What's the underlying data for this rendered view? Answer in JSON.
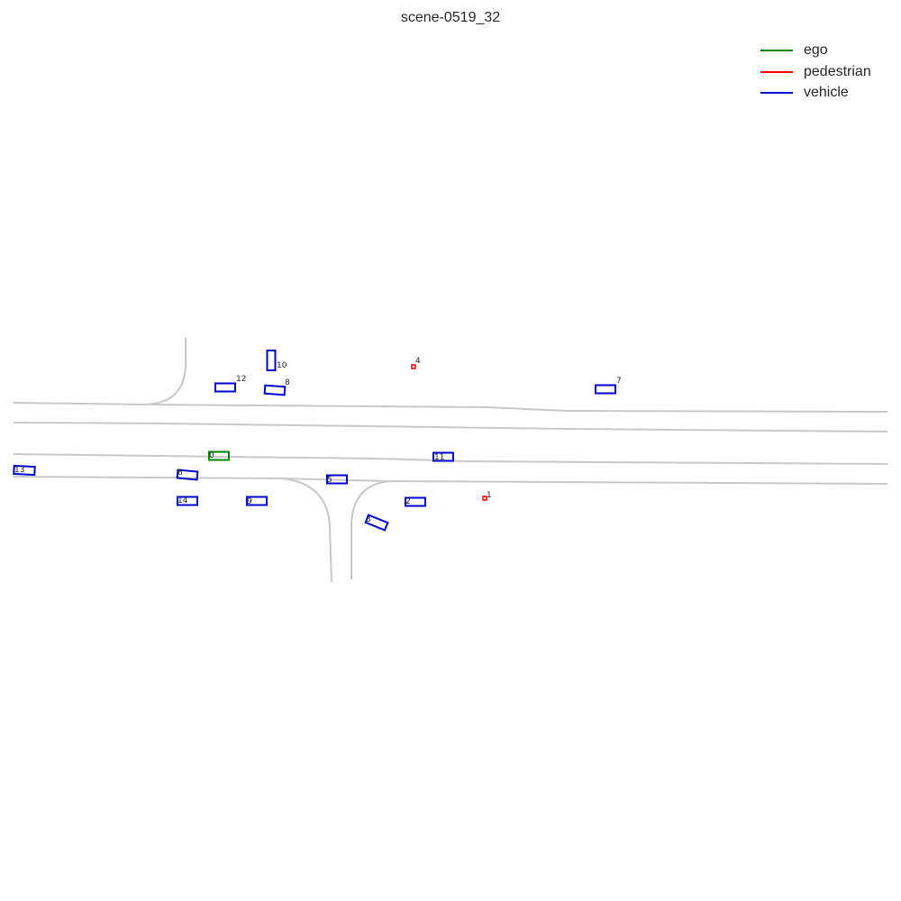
{
  "title": "scene-0519_32",
  "legend": [
    {
      "label": "ego",
      "color": "#008000"
    },
    {
      "label": "pedestrian",
      "color": "#ff0000"
    },
    {
      "label": "vehicle",
      "color": "#0000cc"
    }
  ],
  "agents": [
    {
      "id": "0",
      "type": "ego"
    },
    {
      "id": "1",
      "type": "pedestrian"
    },
    {
      "id": "2",
      "type": "vehicle"
    },
    {
      "id": "3",
      "type": "vehicle"
    },
    {
      "id": "4",
      "type": "pedestrian"
    },
    {
      "id": "5",
      "type": "vehicle"
    },
    {
      "id": "6",
      "type": "vehicle"
    },
    {
      "id": "7",
      "type": "vehicle"
    },
    {
      "id": "8",
      "type": "vehicle"
    },
    {
      "id": "9",
      "type": "vehicle"
    },
    {
      "id": "10",
      "type": "vehicle"
    },
    {
      "id": "11",
      "type": "vehicle"
    },
    {
      "id": "12",
      "type": "vehicle"
    },
    {
      "id": "13",
      "type": "vehicle"
    },
    {
      "id": "14",
      "type": "vehicle"
    }
  ]
}
